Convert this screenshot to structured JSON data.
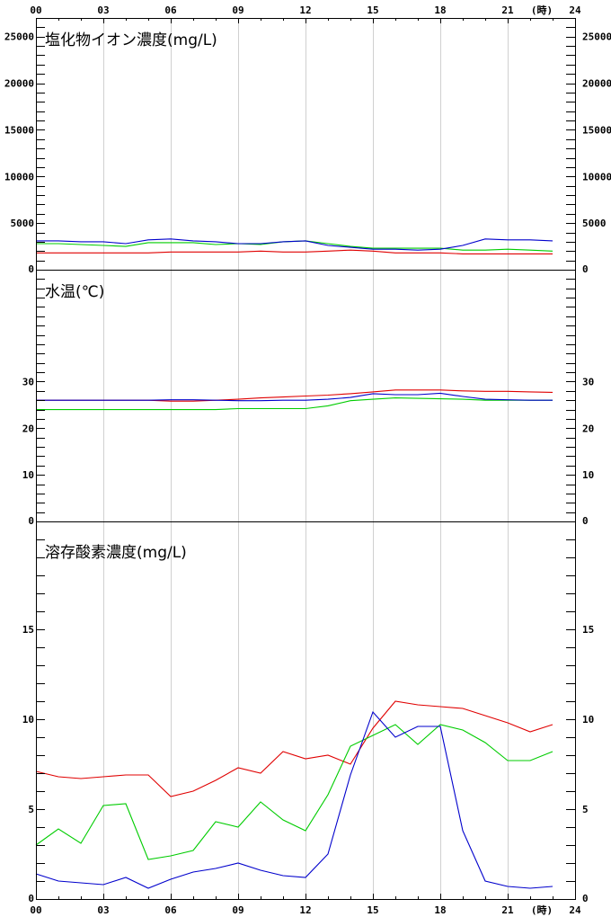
{
  "time_axis": {
    "top_labels": [
      "00",
      "03",
      "06",
      "09",
      "12",
      "15",
      "18",
      "21",
      "24"
    ],
    "bottom_labels": [
      "00",
      "03",
      "06",
      "09",
      "12",
      "15",
      "18",
      "21",
      "24"
    ],
    "unit_label": "(時)"
  },
  "colors": {
    "red": "#e00000",
    "green": "#00cc00",
    "blue": "#0000cc",
    "grid": "#d0d0d0"
  },
  "chart_data": [
    {
      "type": "line",
      "title": "塩化物イオン濃度(mg/L)",
      "ylim": [
        0,
        27000
      ],
      "yticks": [
        0,
        5000,
        10000,
        15000,
        20000,
        25000
      ],
      "ytick_labels": [
        "0",
        "5000",
        "10000",
        "15000",
        "20000",
        "25000"
      ],
      "grid": true,
      "x": [
        0,
        1,
        2,
        3,
        4,
        5,
        6,
        7,
        8,
        9,
        10,
        11,
        12,
        13,
        14,
        15,
        16,
        17,
        18,
        19,
        20,
        21,
        22,
        23
      ],
      "series": [
        {
          "color": "red",
          "values": [
            1800,
            1800,
            1800,
            1800,
            1800,
            1800,
            1900,
            1900,
            1900,
            1900,
            2000,
            1900,
            1900,
            2000,
            2100,
            2000,
            1800,
            1800,
            1800,
            1700,
            1700,
            1700,
            1700,
            1700
          ]
        },
        {
          "color": "green",
          "values": [
            2800,
            2800,
            2700,
            2600,
            2500,
            2900,
            2900,
            2900,
            2700,
            2800,
            2700,
            3000,
            3100,
            2800,
            2500,
            2300,
            2300,
            2300,
            2300,
            2100,
            2100,
            2200,
            2100,
            2000
          ]
        },
        {
          "color": "blue",
          "values": [
            3100,
            3100,
            3000,
            3000,
            2800,
            3200,
            3300,
            3100,
            3000,
            2800,
            2800,
            3000,
            3100,
            2600,
            2400,
            2200,
            2200,
            2100,
            2200,
            2600,
            3300,
            3200,
            3200,
            3100
          ]
        }
      ]
    },
    {
      "type": "line",
      "title": "水温(℃)",
      "ylim": [
        0,
        54
      ],
      "yticks": [
        0,
        10,
        20,
        30
      ],
      "ytick_labels": [
        "0",
        "10",
        "20",
        "30"
      ],
      "grid": true,
      "x": [
        0,
        1,
        2,
        3,
        4,
        5,
        6,
        7,
        8,
        9,
        10,
        11,
        12,
        13,
        14,
        15,
        16,
        17,
        18,
        19,
        20,
        21,
        22,
        23
      ],
      "series": [
        {
          "color": "red",
          "values": [
            26.0,
            26.0,
            26.0,
            26.0,
            26.0,
            26.0,
            25.8,
            25.8,
            26.0,
            26.2,
            26.5,
            26.7,
            26.9,
            27.1,
            27.4,
            27.8,
            28.2,
            28.2,
            28.2,
            28.0,
            27.9,
            27.9,
            27.8,
            27.7
          ]
        },
        {
          "color": "green",
          "values": [
            24.0,
            24.0,
            24.0,
            24.0,
            24.0,
            24.0,
            24.0,
            24.0,
            24.0,
            24.2,
            24.2,
            24.2,
            24.2,
            24.8,
            25.9,
            26.2,
            26.5,
            26.4,
            26.3,
            26.2,
            26.0,
            26.0,
            26.0,
            26.0
          ]
        },
        {
          "color": "blue",
          "values": [
            26.0,
            26.0,
            26.0,
            26.0,
            26.0,
            26.0,
            26.1,
            26.1,
            26.0,
            25.9,
            25.9,
            26.0,
            26.0,
            26.2,
            26.6,
            27.4,
            27.2,
            27.2,
            27.5,
            26.8,
            26.2,
            26.1,
            26.0,
            26.0
          ]
        }
      ]
    },
    {
      "type": "line",
      "title": "溶存酸素濃度(mg/L)",
      "ylim": [
        0,
        21
      ],
      "yticks": [
        0,
        5,
        10,
        15
      ],
      "ytick_labels": [
        "0",
        "5",
        "10",
        "15"
      ],
      "grid": true,
      "x": [
        0,
        1,
        2,
        3,
        4,
        5,
        6,
        7,
        8,
        9,
        10,
        11,
        12,
        13,
        14,
        15,
        16,
        17,
        18,
        19,
        20,
        21,
        22,
        23
      ],
      "series": [
        {
          "color": "red",
          "values": [
            7.1,
            6.8,
            6.7,
            6.8,
            6.9,
            6.9,
            5.7,
            6.0,
            6.6,
            7.3,
            7.0,
            8.2,
            7.8,
            8.0,
            7.5,
            9.5,
            11.0,
            10.8,
            10.7,
            10.6,
            10.2,
            9.8,
            9.3,
            9.7
          ]
        },
        {
          "color": "green",
          "values": [
            3.0,
            3.9,
            3.1,
            5.2,
            5.3,
            2.2,
            2.4,
            2.7,
            4.3,
            4.0,
            5.4,
            4.4,
            3.8,
            5.8,
            8.5,
            9.1,
            9.7,
            8.6,
            9.7,
            9.4,
            8.7,
            7.7,
            7.7,
            8.2
          ]
        },
        {
          "color": "blue",
          "values": [
            1.4,
            1.0,
            0.9,
            0.8,
            1.2,
            0.6,
            1.1,
            1.5,
            1.7,
            2.0,
            1.6,
            1.3,
            1.2,
            2.5,
            6.9,
            10.4,
            9.0,
            9.6,
            9.6,
            3.8,
            1.0,
            0.7,
            0.6,
            0.7
          ]
        }
      ]
    }
  ]
}
